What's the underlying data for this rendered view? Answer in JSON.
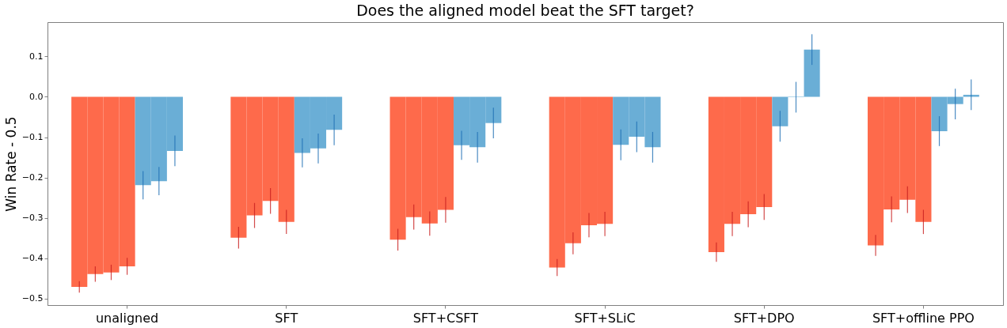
{
  "chart_data": {
    "type": "bar",
    "title": "Does the aligned model beat the SFT target?",
    "ylabel": "Win Rate - 0.5",
    "categories": [
      "unaligned",
      "SFT",
      "SFT+CSFT",
      "SFT+SLiC",
      "SFT+DPO",
      "SFT+offline PPO"
    ],
    "series": [
      {
        "color": "#fe6a4b",
        "values": [
          -0.471,
          -0.349,
          -0.354,
          -0.423,
          -0.385,
          -0.368
        ],
        "errors": [
          0.014,
          0.027,
          0.027,
          0.021,
          0.024,
          0.026
        ]
      },
      {
        "color": "#fe6a4b",
        "values": [
          -0.439,
          -0.294,
          -0.298,
          -0.363,
          -0.315,
          -0.279
        ],
        "errors": [
          0.019,
          0.031,
          0.031,
          0.027,
          0.03,
          0.032
        ]
      },
      {
        "color": "#fe6a4b",
        "values": [
          -0.435,
          -0.258,
          -0.314,
          -0.318,
          -0.291,
          -0.255
        ],
        "errors": [
          0.019,
          0.032,
          0.03,
          0.03,
          0.032,
          0.033
        ]
      },
      {
        "color": "#fe6a4b",
        "values": [
          -0.42,
          -0.31,
          -0.28,
          -0.315,
          -0.273,
          -0.31
        ],
        "errors": [
          0.021,
          0.03,
          0.032,
          0.03,
          0.032,
          0.03
        ]
      },
      {
        "color": "#6aaed6",
        "values": [
          -0.219,
          -0.139,
          -0.12,
          -0.119,
          -0.073,
          -0.085
        ],
        "errors": [
          0.035,
          0.036,
          0.036,
          0.038,
          0.038,
          0.037
        ]
      },
      {
        "color": "#6aaed6",
        "values": [
          -0.209,
          -0.128,
          -0.125,
          -0.099,
          -0.001,
          -0.018
        ],
        "errors": [
          0.035,
          0.037,
          0.038,
          0.038,
          0.038,
          0.038
        ]
      },
      {
        "color": "#6aaed6",
        "values": [
          -0.134,
          -0.082,
          -0.065,
          -0.125,
          0.117,
          0.005
        ],
        "errors": [
          0.038,
          0.038,
          0.038,
          0.038,
          0.038,
          0.038
        ]
      }
    ],
    "ylim": [
      -0.516,
      0.185
    ],
    "yticks": [
      {
        "value": -0.5,
        "label": "−0.5"
      },
      {
        "value": -0.4,
        "label": "−0.4"
      },
      {
        "value": -0.3,
        "label": "−0.3"
      },
      {
        "value": -0.2,
        "label": "−0.2"
      },
      {
        "value": -0.1,
        "label": "−0.1"
      },
      {
        "value": 0,
        "label": "0.0"
      },
      {
        "value": 0.1,
        "label": "0.1"
      }
    ],
    "grid": false
  }
}
